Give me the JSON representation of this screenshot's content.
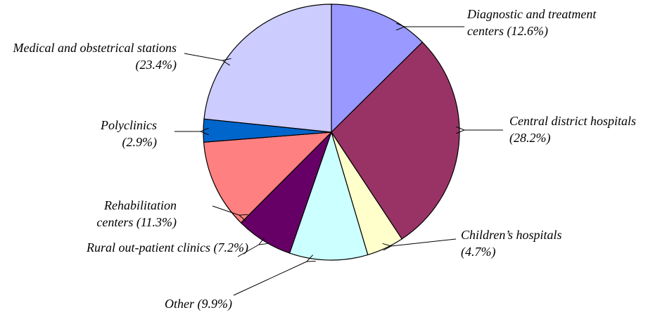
{
  "chart_data": {
    "type": "pie",
    "categories": [
      "Diagnostic and treatment centers",
      "Central district hospitals",
      "Children’s hospitals",
      "Other",
      "Rural out-patient clinics",
      "Rehabilitation centers",
      "Polyclinics",
      "Medical and obstetrical stations"
    ],
    "values": [
      12.6,
      28.2,
      4.7,
      9.9,
      7.2,
      11.3,
      2.9,
      23.4
    ],
    "value_labels": [
      "(12.6%)",
      "(28.2%)",
      "(4.7%)",
      "(9.9%)",
      "(7.2%)",
      "(11.3%)",
      "(2.9%)",
      "(23.4%)"
    ],
    "colors": [
      "#9999ff",
      "#993366",
      "#ffffcc",
      "#ccffff",
      "#660066",
      "#ff8080",
      "#0066cc",
      "#ccccff"
    ]
  }
}
